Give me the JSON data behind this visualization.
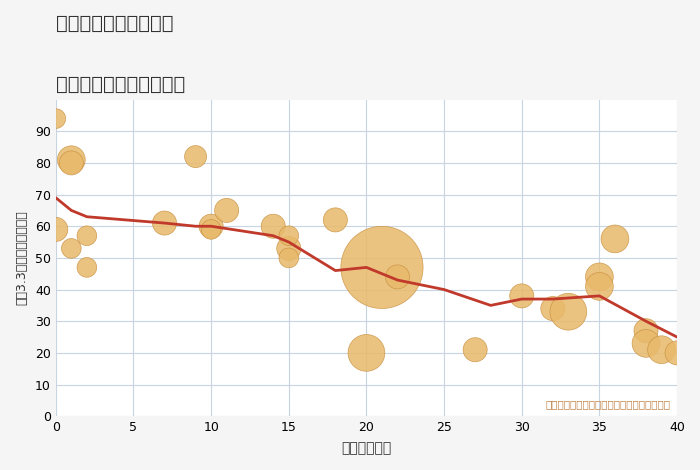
{
  "title_line1": "神奈川県平塚市広川の",
  "title_line2": "築年数別中古戸建て価格",
  "xlabel": "築年数（年）",
  "ylabel": "平（3.3㎡）単価（万円）",
  "annotation": "円の大きさは、取引のあった物件面積を示す",
  "background_color": "#f5f5f5",
  "plot_bg_color": "#ffffff",
  "grid_color": "#c8d4e0",
  "xlim": [
    0,
    40
  ],
  "ylim": [
    0,
    100
  ],
  "yticks": [
    0,
    10,
    20,
    30,
    40,
    50,
    60,
    70,
    80,
    90
  ],
  "xticks": [
    0,
    5,
    10,
    15,
    20,
    25,
    30,
    35,
    40
  ],
  "scatter_x": [
    0,
    0,
    1,
    1,
    1,
    2,
    2,
    7,
    9,
    10,
    10,
    11,
    14,
    15,
    15,
    15,
    18,
    20,
    21,
    22,
    27,
    30,
    32,
    33,
    35,
    35,
    36,
    38,
    38,
    39,
    40
  ],
  "scatter_y": [
    94,
    59,
    81,
    80,
    53,
    57,
    47,
    61,
    82,
    60,
    59,
    65,
    60,
    53,
    57,
    50,
    62,
    20,
    47,
    44,
    21,
    38,
    34,
    33,
    44,
    41,
    56,
    27,
    23,
    21,
    20
  ],
  "scatter_size": [
    200,
    300,
    400,
    300,
    200,
    200,
    200,
    300,
    250,
    300,
    200,
    300,
    300,
    300,
    200,
    200,
    300,
    700,
    3500,
    300,
    300,
    300,
    300,
    700,
    400,
    400,
    400,
    300,
    400,
    400,
    300
  ],
  "line_x": [
    0,
    1,
    2,
    7,
    9,
    10,
    14,
    15,
    18,
    20,
    22,
    25,
    28,
    30,
    32,
    35,
    38,
    40
  ],
  "line_y": [
    69,
    65,
    63,
    61,
    60,
    60,
    57,
    55,
    46,
    47,
    43,
    40,
    35,
    37,
    37,
    38,
    30,
    25
  ],
  "scatter_color": "#e8b96a",
  "scatter_edge_color": "#c89040",
  "line_color": "#c0392b",
  "line_width": 2.0
}
